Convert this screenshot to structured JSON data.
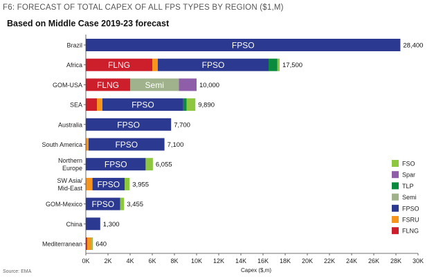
{
  "header": {
    "figure_label": "F6:  FORECAST OF TOTAL CAPEX OF ALL FPS TYPES BY REGION ($1,M)",
    "subtitle": "Based on Middle Case 2019-23 forecast"
  },
  "footer": {
    "source": "Source: EMA"
  },
  "chart_data": {
    "type": "bar",
    "orientation": "horizontal",
    "stacked": true,
    "title": "",
    "xlabel": "Capex ($,m)",
    "ylabel": "",
    "xlim": [
      0,
      30000
    ],
    "x_ticks": [
      0,
      2000,
      4000,
      6000,
      8000,
      10000,
      12000,
      14000,
      16000,
      18000,
      20000,
      22000,
      24000,
      26000,
      28000,
      30000
    ],
    "x_tick_labels": [
      "0K",
      "2K",
      "4K",
      "6K",
      "8K",
      "10K",
      "12K",
      "14K",
      "16K",
      "18K",
      "20K",
      "22K",
      "24K",
      "26K",
      "28K",
      "30K"
    ],
    "grid": false,
    "legend_position": "right",
    "categories": [
      [
        "Brazil"
      ],
      [
        "Africa"
      ],
      [
        "GOM-USA"
      ],
      [
        "SEA"
      ],
      [
        "Australia"
      ],
      [
        "South America"
      ],
      [
        "Northern",
        "Europe"
      ],
      [
        "SW Asia/",
        "Mid-East"
      ],
      [
        "GOM-Mexico"
      ],
      [
        "China"
      ],
      [
        "Mediterranean"
      ]
    ],
    "totals": [
      "28,400",
      "17,500",
      "10,000",
      "9,890",
      "7,700",
      "7,100",
      "6,055",
      "3,955",
      "3,455",
      "1,300",
      "640"
    ],
    "series": [
      {
        "name": "FLNG",
        "color": "#cc1f2b",
        "values": [
          0,
          6000,
          4000,
          1000,
          0,
          0,
          0,
          0,
          0,
          0,
          120
        ]
      },
      {
        "name": "FSRU",
        "color": "#f7941d",
        "values": [
          0,
          500,
          0,
          500,
          0,
          250,
          0,
          600,
          0,
          0,
          400
        ]
      },
      {
        "name": "FPSO",
        "color": "#2b3990",
        "values": [
          28400,
          10000,
          0,
          7300,
          7700,
          6850,
          5400,
          2900,
          3100,
          1300,
          0
        ]
      },
      {
        "name": "Semi",
        "color": "#9fb28b",
        "values": [
          0,
          0,
          4400,
          0,
          0,
          0,
          0,
          0,
          0,
          0,
          0
        ]
      },
      {
        "name": "TLP",
        "color": "#0a8a3c",
        "values": [
          0,
          800,
          0,
          300,
          0,
          0,
          0,
          0,
          0,
          0,
          0
        ]
      },
      {
        "name": "Spar",
        "color": "#8e5ea8",
        "values": [
          0,
          0,
          1600,
          0,
          0,
          0,
          0,
          0,
          0,
          0,
          0
        ]
      },
      {
        "name": "FSO",
        "color": "#8dc63f",
        "values": [
          0,
          200,
          0,
          790,
          0,
          0,
          655,
          455,
          355,
          0,
          120
        ]
      }
    ],
    "segment_labels": [
      {
        "row": 0,
        "series": "FPSO",
        "text": "FPSO"
      },
      {
        "row": 1,
        "series": "FLNG",
        "text": "FLNG"
      },
      {
        "row": 1,
        "series": "FPSO",
        "text": "FPSO"
      },
      {
        "row": 2,
        "series": "FLNG",
        "text": "FLNG"
      },
      {
        "row": 2,
        "series": "Semi",
        "text": "Semi"
      },
      {
        "row": 3,
        "series": "FPSO",
        "text": "FPSO"
      },
      {
        "row": 4,
        "series": "FPSO",
        "text": "FPSO"
      },
      {
        "row": 5,
        "series": "FPSO",
        "text": "FPSO"
      },
      {
        "row": 6,
        "series": "FPSO",
        "text": "FPSO"
      },
      {
        "row": 7,
        "series": "FPSO",
        "text": "FPSO"
      },
      {
        "row": 8,
        "series": "FPSO",
        "text": "FPSO"
      }
    ],
    "legend_order": [
      "FSO",
      "Spar",
      "TLP",
      "Semi",
      "FPSO",
      "FSRU",
      "FLNG"
    ]
  }
}
